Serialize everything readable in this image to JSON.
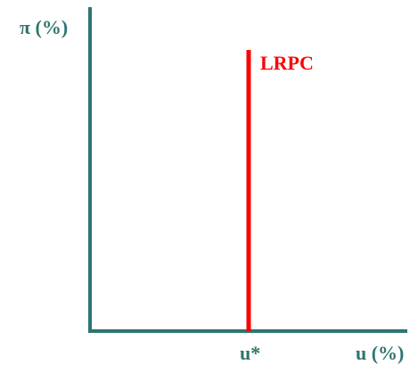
{
  "diagram": {
    "y_axis_label": "π (%)",
    "x_axis_label": "u (%)",
    "tick_label": "u*",
    "curve_label": "LRPC",
    "colors": {
      "axis": "#2e7570",
      "axis_text": "#2e7570",
      "curve": "#ff0000",
      "curve_text": "#ff0000",
      "background": "#ffffff"
    }
  }
}
